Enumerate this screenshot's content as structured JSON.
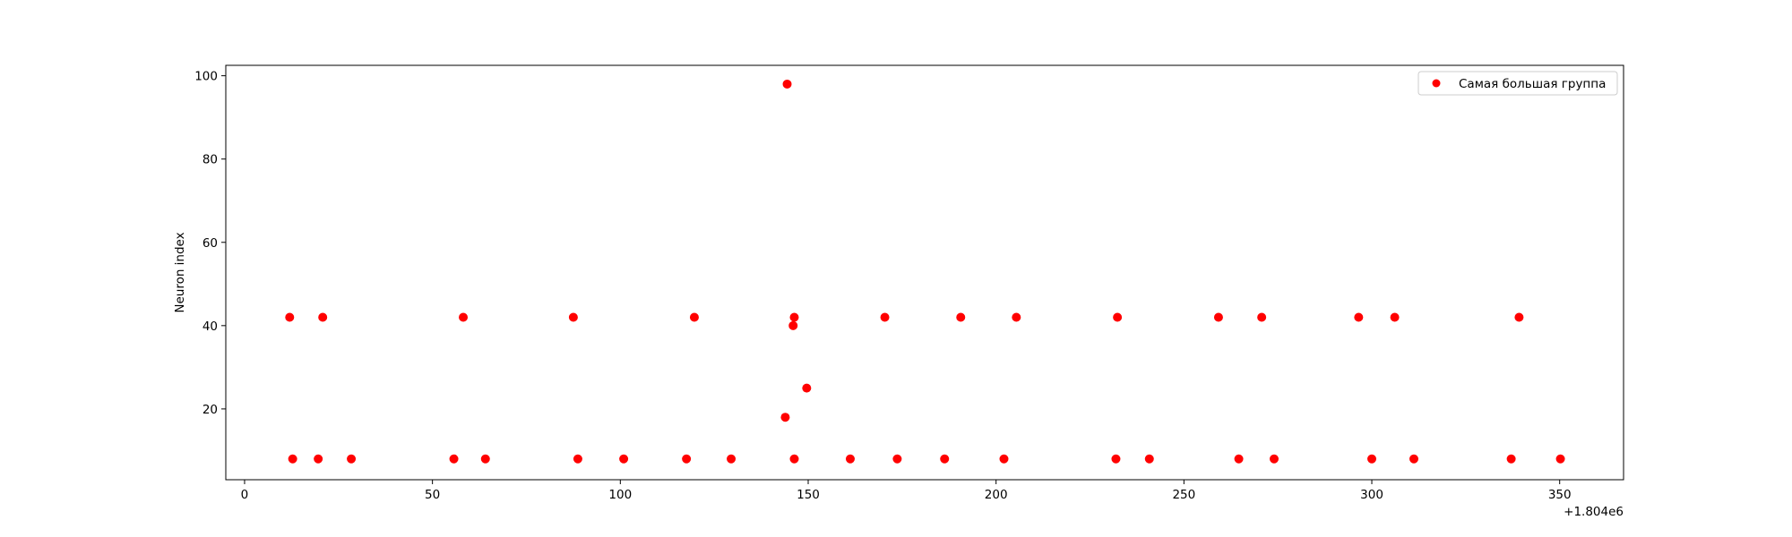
{
  "chart_data": {
    "type": "scatter",
    "title": "",
    "xlabel": "",
    "ylabel": "Neuron index",
    "x_offset_label": "+1.804e6",
    "xlim": [
      -5,
      367
    ],
    "ylim": [
      3,
      102.5
    ],
    "xticks": [
      0,
      50,
      100,
      150,
      200,
      250,
      300,
      350
    ],
    "yticks": [
      20,
      40,
      60,
      80,
      100
    ],
    "grid": false,
    "legend_position": "top-right",
    "color": "#ff0000",
    "series": [
      {
        "name": "Самая большая группа",
        "points": [
          {
            "x": 12.0,
            "y": 42
          },
          {
            "x": 12.8,
            "y": 8
          },
          {
            "x": 19.6,
            "y": 8
          },
          {
            "x": 20.8,
            "y": 42
          },
          {
            "x": 28.4,
            "y": 8
          },
          {
            "x": 55.7,
            "y": 8
          },
          {
            "x": 58.2,
            "y": 42
          },
          {
            "x": 64.1,
            "y": 8
          },
          {
            "x": 87.5,
            "y": 42
          },
          {
            "x": 88.7,
            "y": 8
          },
          {
            "x": 100.9,
            "y": 8
          },
          {
            "x": 117.6,
            "y": 8
          },
          {
            "x": 119.7,
            "y": 42
          },
          {
            "x": 129.5,
            "y": 8
          },
          {
            "x": 143.9,
            "y": 18
          },
          {
            "x": 144.4,
            "y": 98
          },
          {
            "x": 146.0,
            "y": 40
          },
          {
            "x": 146.3,
            "y": 42
          },
          {
            "x": 146.3,
            "y": 8
          },
          {
            "x": 149.6,
            "y": 25
          },
          {
            "x": 161.2,
            "y": 8
          },
          {
            "x": 170.4,
            "y": 42
          },
          {
            "x": 173.7,
            "y": 8
          },
          {
            "x": 186.3,
            "y": 8
          },
          {
            "x": 190.6,
            "y": 42
          },
          {
            "x": 202.1,
            "y": 8
          },
          {
            "x": 205.4,
            "y": 42
          },
          {
            "x": 231.9,
            "y": 8
          },
          {
            "x": 232.3,
            "y": 42
          },
          {
            "x": 240.8,
            "y": 8
          },
          {
            "x": 259.2,
            "y": 42
          },
          {
            "x": 264.6,
            "y": 8
          },
          {
            "x": 270.7,
            "y": 42
          },
          {
            "x": 274.0,
            "y": 8
          },
          {
            "x": 296.5,
            "y": 42
          },
          {
            "x": 300.0,
            "y": 8
          },
          {
            "x": 306.1,
            "y": 42
          },
          {
            "x": 311.2,
            "y": 8
          },
          {
            "x": 337.1,
            "y": 8
          },
          {
            "x": 339.2,
            "y": 42
          },
          {
            "x": 350.2,
            "y": 8
          }
        ]
      }
    ]
  }
}
